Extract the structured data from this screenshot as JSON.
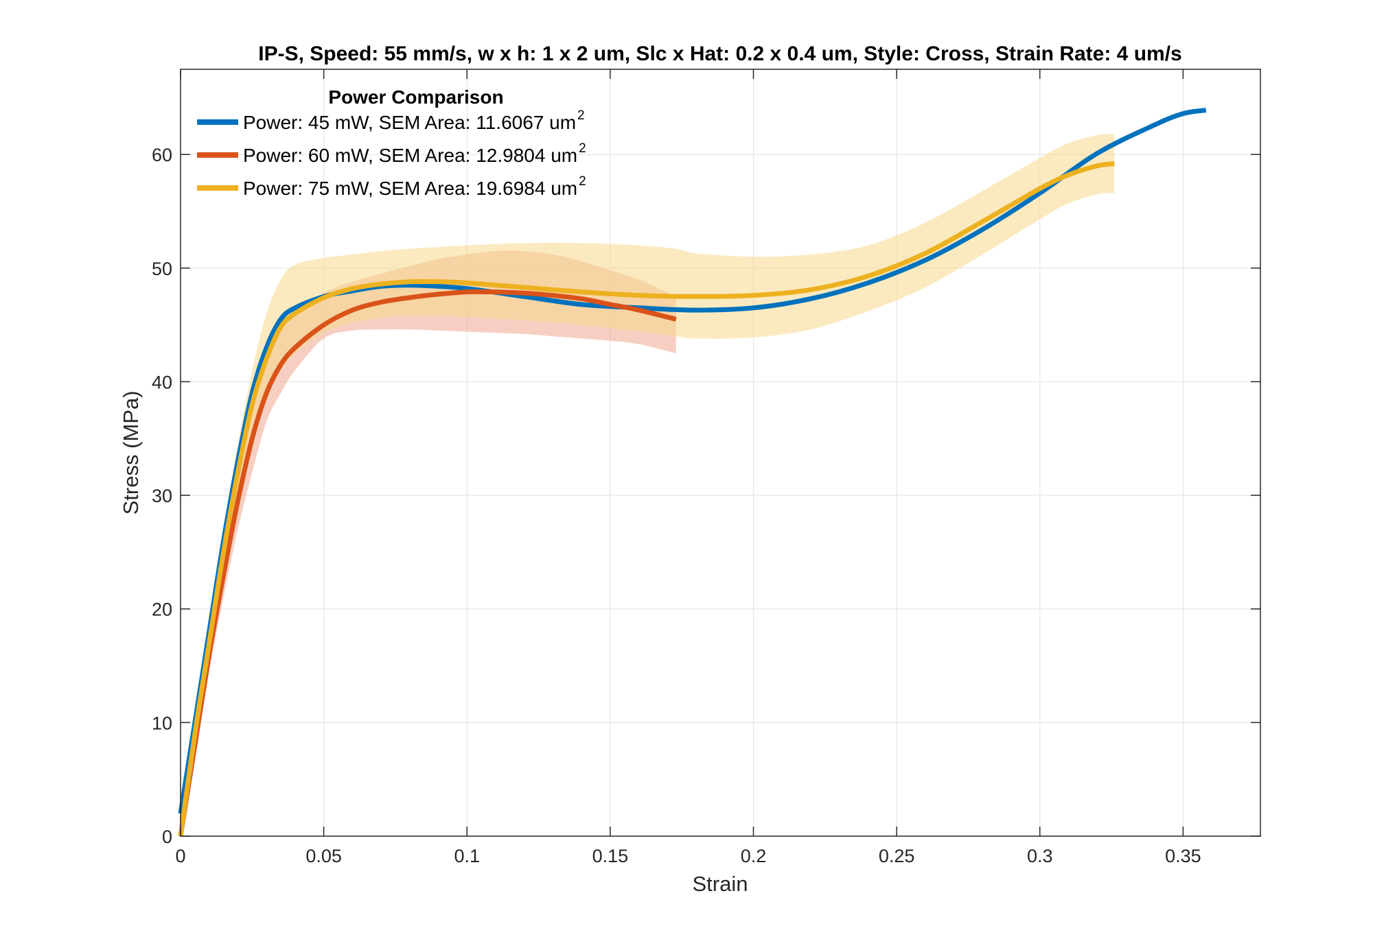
{
  "chart_data": {
    "type": "line",
    "title": "IP-S, Speed: 55 mm/s, w x h: 1 x 2 um, Slc x Hat: 0.2 x 0.4 um, Style: Cross, Strain Rate: 4 um/s",
    "xlabel": "Strain",
    "ylabel": "Stress (MPa)",
    "xlim": [
      0,
      0.377
    ],
    "ylim": [
      0,
      67.5
    ],
    "xticks": [
      0,
      0.05,
      0.1,
      0.15,
      0.2,
      0.25,
      0.3,
      0.35
    ],
    "xtick_labels": [
      "0",
      "0.05",
      "0.1",
      "0.15",
      "0.2",
      "0.25",
      "0.3",
      "0.35"
    ],
    "yticks": [
      0,
      10,
      20,
      30,
      40,
      50,
      60
    ],
    "ytick_labels": [
      "0",
      "10",
      "20",
      "30",
      "40",
      "50",
      "60"
    ],
    "grid": true,
    "legend": {
      "title": "Power Comparison",
      "location": "top-left",
      "superscript": "2"
    },
    "series": [
      {
        "name": "Power: 45 mW, SEM Area: 11.6067 um",
        "color": "#0072BD",
        "x": [
          0,
          0.005,
          0.01,
          0.015,
          0.02,
          0.025,
          0.03,
          0.035,
          0.04,
          0.05,
          0.06,
          0.07,
          0.08,
          0.09,
          0.1,
          0.12,
          0.14,
          0.16,
          0.18,
          0.2,
          0.22,
          0.24,
          0.26,
          0.28,
          0.3,
          0.32,
          0.34,
          0.35,
          0.358
        ],
        "y": [
          2,
          10,
          18,
          26,
          33,
          39,
          43,
          45.5,
          46.5,
          47.5,
          48,
          48.4,
          48.5,
          48.4,
          48.2,
          47.5,
          46.8,
          46.5,
          46.3,
          46.5,
          47.3,
          48.7,
          50.7,
          53.4,
          56.6,
          60.1,
          62.6,
          63.6,
          63.9
        ],
        "band_x": [],
        "band_upper": [],
        "band_lower": []
      },
      {
        "name": "Power: 60 mW, SEM Area: 12.9804 um",
        "color": "#D95319",
        "band_color": "#F0A890",
        "x": [
          0,
          0.005,
          0.01,
          0.015,
          0.02,
          0.025,
          0.03,
          0.035,
          0.04,
          0.05,
          0.06,
          0.07,
          0.08,
          0.09,
          0.1,
          0.11,
          0.12,
          0.13,
          0.14,
          0.15,
          0.16,
          0.173
        ],
        "y": [
          0,
          8,
          16,
          23,
          29.5,
          35,
          39,
          41.5,
          43,
          45,
          46.3,
          47,
          47.4,
          47.7,
          47.9,
          47.9,
          47.8,
          47.6,
          47.3,
          46.8,
          46.3,
          45.5
        ],
        "band_x": [
          0,
          0.005,
          0.01,
          0.015,
          0.02,
          0.025,
          0.03,
          0.035,
          0.04,
          0.05,
          0.06,
          0.07,
          0.08,
          0.09,
          0.1,
          0.11,
          0.12,
          0.13,
          0.14,
          0.15,
          0.16,
          0.173
        ],
        "band_upper": [
          0.5,
          9,
          17.5,
          25,
          32,
          38,
          42,
          44.5,
          46,
          47.8,
          48.8,
          49.5,
          50.2,
          50.8,
          51.2,
          51.5,
          51.5,
          51.2,
          50.6,
          49.8,
          49,
          47.5
        ],
        "band_lower": [
          0,
          7,
          14.5,
          21,
          27,
          32,
          36.5,
          39,
          41,
          43.8,
          44.5,
          44.6,
          44.6,
          44.5,
          44.4,
          44.3,
          44.2,
          44,
          43.8,
          43.6,
          43.3,
          42.5
        ]
      },
      {
        "name": "Power: 75 mW, SEM Area: 19.6984 um",
        "color": "#EDB120",
        "band_color": "#F7D98C",
        "x": [
          0,
          0.005,
          0.01,
          0.015,
          0.02,
          0.025,
          0.03,
          0.035,
          0.04,
          0.05,
          0.06,
          0.07,
          0.08,
          0.09,
          0.1,
          0.12,
          0.14,
          0.16,
          0.18,
          0.2,
          0.22,
          0.24,
          0.26,
          0.28,
          0.3,
          0.31,
          0.32,
          0.326
        ],
        "y": [
          0,
          9,
          17,
          25,
          32,
          38,
          42,
          44.8,
          46,
          47.4,
          48.2,
          48.6,
          48.8,
          48.8,
          48.7,
          48.3,
          47.9,
          47.6,
          47.5,
          47.6,
          48.1,
          49.3,
          51.3,
          54.1,
          57,
          58.2,
          59,
          59.2
        ],
        "band_x": [
          0,
          0.005,
          0.01,
          0.015,
          0.02,
          0.025,
          0.03,
          0.035,
          0.04,
          0.05,
          0.06,
          0.07,
          0.08,
          0.1,
          0.12,
          0.14,
          0.16,
          0.173,
          0.18,
          0.2,
          0.22,
          0.24,
          0.26,
          0.28,
          0.3,
          0.31,
          0.32,
          0.326
        ],
        "band_upper": [
          0.5,
          10,
          19,
          27,
          34.5,
          41,
          46,
          49,
          50.3,
          50.9,
          51.2,
          51.5,
          51.7,
          52,
          52.2,
          52.2,
          52,
          51.7,
          51.3,
          51,
          51.2,
          52,
          54,
          56.8,
          59.7,
          61,
          61.7,
          61.8
        ],
        "band_lower": [
          0,
          8,
          15.5,
          23,
          29.5,
          35,
          38.5,
          41,
          42.5,
          44.3,
          45.2,
          45.6,
          45.8,
          45.7,
          45.4,
          45,
          44.4,
          44,
          43.8,
          43.9,
          44.6,
          46.2,
          48.3,
          51.2,
          54.3,
          55.7,
          56.5,
          56.6
        ]
      }
    ]
  }
}
